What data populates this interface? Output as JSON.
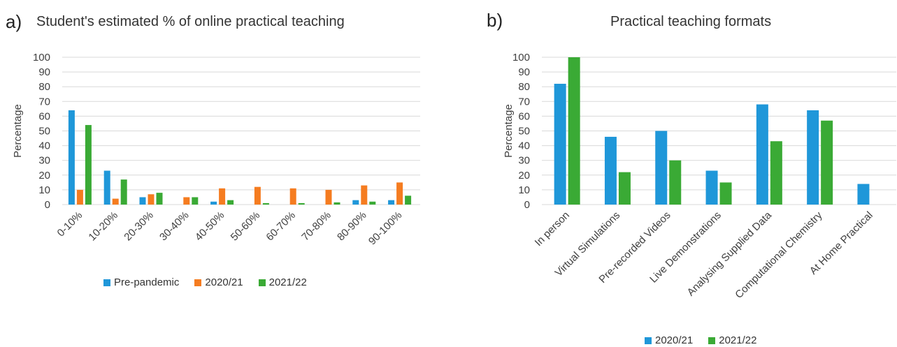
{
  "panels": {
    "a": {
      "letter": "a)",
      "title": "Student's estimated % of online practical teaching"
    },
    "b": {
      "letter": "b)",
      "title": "Practical teaching formats"
    }
  },
  "chart_data": [
    {
      "type": "bar",
      "title": "Student's estimated % of online practical teaching",
      "xlabel": "",
      "ylabel": "Percentage",
      "ylim": [
        0,
        100
      ],
      "yticks": [
        0,
        10,
        20,
        30,
        40,
        50,
        60,
        70,
        80,
        90,
        100
      ],
      "grid": true,
      "legend_position": "bottom",
      "categories": [
        "0-10%",
        "10-20%",
        "20-30%",
        "30-40%",
        "40-50%",
        "50-60%",
        "60-70%",
        "70-80%",
        "80-90%",
        "90-100%"
      ],
      "series": [
        {
          "name": "Pre-pandemic",
          "color": "#1f97d9",
          "values": [
            64,
            23,
            5,
            0,
            2,
            0,
            0,
            0,
            3,
            3
          ]
        },
        {
          "name": "2020/21",
          "color": "#f57c20",
          "values": [
            10,
            4,
            7,
            5,
            11,
            12,
            11,
            10,
            13,
            15
          ]
        },
        {
          "name": "2021/22",
          "color": "#3aaa35",
          "values": [
            54,
            17,
            8,
            5,
            3,
            1,
            1,
            1.5,
            2,
            6
          ]
        }
      ]
    },
    {
      "type": "bar",
      "title": "Practical teaching formats",
      "xlabel": "",
      "ylabel": "Percentage",
      "ylim": [
        0,
        100
      ],
      "yticks": [
        0,
        10,
        20,
        30,
        40,
        50,
        60,
        70,
        80,
        90,
        100
      ],
      "grid": true,
      "legend_position": "bottom",
      "categories": [
        "In person",
        "Virtual Simulations",
        "Pre-recorded Videos",
        "Live Demonstrations",
        "Analysing Supplied Data",
        "Computational Chemistry",
        "At Home Practical"
      ],
      "series": [
        {
          "name": "2020/21",
          "color": "#1f97d9",
          "values": [
            82,
            46,
            50,
            23,
            68,
            64,
            14
          ]
        },
        {
          "name": "2021/22",
          "color": "#3aaa35",
          "values": [
            100,
            22,
            30,
            15,
            43,
            57,
            0
          ]
        }
      ]
    }
  ]
}
